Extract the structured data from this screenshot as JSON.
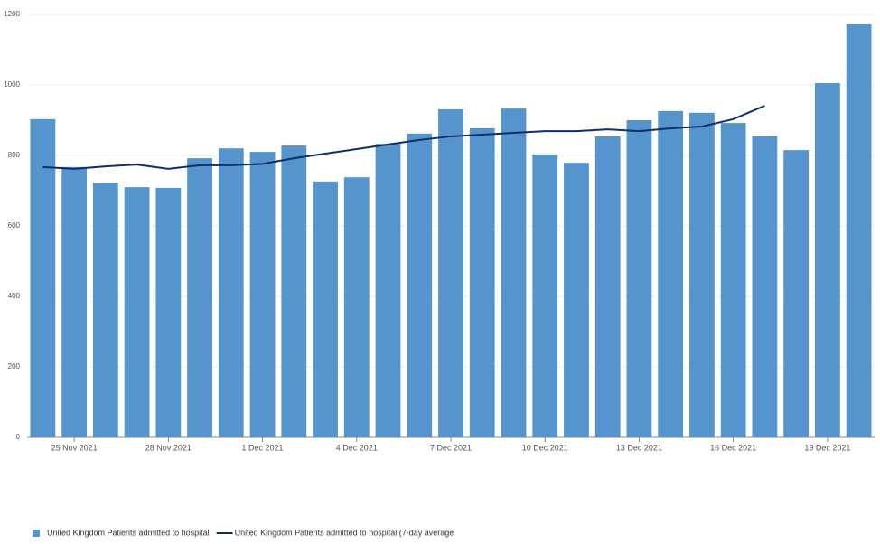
{
  "chart_data": {
    "type": "bar",
    "categories": [
      null,
      "25 Nov 2021",
      null,
      null,
      "28 Nov 2021",
      null,
      null,
      "1 Dec 2021",
      null,
      null,
      "4 Dec 2021",
      null,
      null,
      "7 Dec 2021",
      null,
      null,
      "10 Dec 2021",
      null,
      null,
      "13 Dec 2021",
      null,
      null,
      "16 Dec 2021",
      null,
      null,
      "19 Dec 2021",
      null
    ],
    "series": [
      {
        "name": "United Kingdom Patients admitted to hospital",
        "type": "bar",
        "color": "#5594cd",
        "values": [
          903,
          767,
          723,
          710,
          708,
          792,
          820,
          810,
          828,
          726,
          738,
          833,
          862,
          931,
          877,
          933,
          803,
          779,
          854,
          900,
          926,
          921,
          892,
          854,
          815,
          1005,
          1172
        ]
      },
      {
        "name": "United Kingdom Patients admitted to hospital (7-day average",
        "type": "line",
        "color": "#0d2f6e",
        "values": [
          767,
          762,
          769,
          774,
          762,
          772,
          772,
          776,
          792,
          805,
          818,
          831,
          844,
          854,
          859,
          864,
          869,
          869,
          874,
          869,
          877,
          882,
          903,
          941,
          null,
          null,
          null
        ]
      }
    ],
    "ylim": [
      0,
      1200
    ],
    "yticks": [
      0,
      200,
      400,
      600,
      800,
      1000,
      1200
    ],
    "grid": true,
    "legend": "bottom-left"
  }
}
